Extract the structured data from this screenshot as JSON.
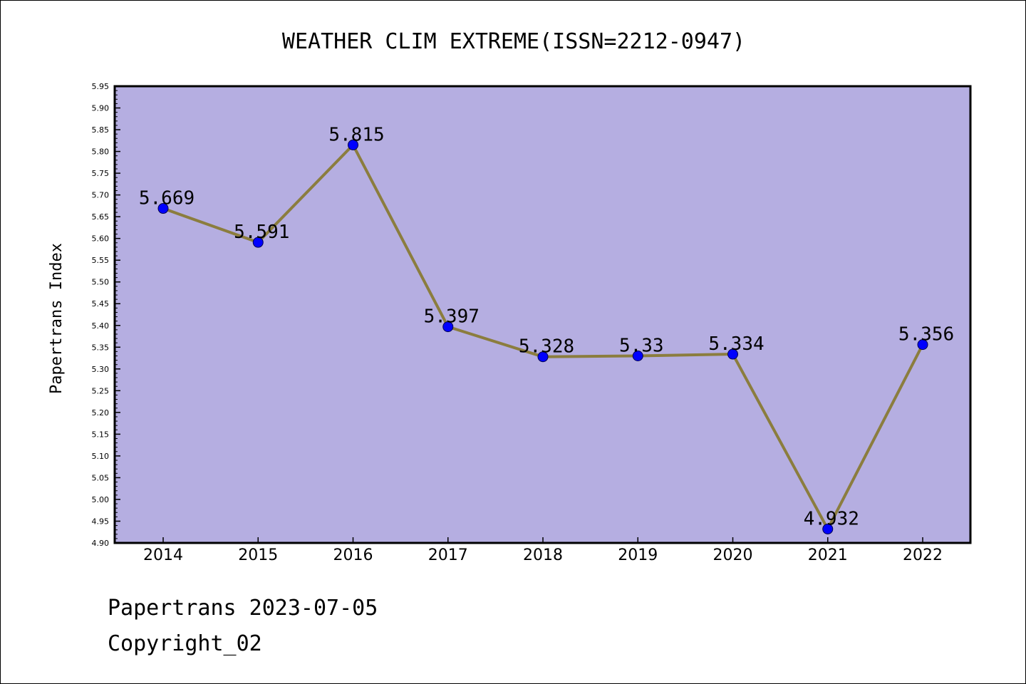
{
  "chart_data": {
    "type": "line",
    "title": "WEATHER CLIM EXTREME(ISSN=2212-0947)",
    "xlabel": "",
    "ylabel": "Papertrans Index",
    "categories": [
      "2014",
      "2015",
      "2016",
      "2017",
      "2018",
      "2019",
      "2020",
      "2021",
      "2022"
    ],
    "series": [
      {
        "values": [
          5.669,
          5.591,
          5.815,
          5.397,
          5.328,
          5.33,
          5.334,
          4.932,
          5.356
        ],
        "data_labels": [
          "5.669",
          "5.591",
          "5.815",
          "5.397",
          "5.328",
          "5.33",
          "5.334",
          "4.932",
          "5.356"
        ]
      }
    ],
    "ylim": [
      4.9,
      5.95
    ],
    "yticks": [
      "4.90",
      "4.95",
      "5.00",
      "5.05",
      "5.10",
      "5.15",
      "5.20",
      "5.25",
      "5.30",
      "5.35",
      "5.40",
      "5.45",
      "5.50",
      "5.55",
      "5.60",
      "5.65",
      "5.70",
      "5.75",
      "5.80",
      "5.85",
      "5.90",
      "5.95"
    ],
    "grid": false,
    "legend": "none",
    "colors": {
      "plot_background": "#b5aee1",
      "line": "#8b7d3e",
      "marker": "#0000ff"
    }
  },
  "footer": {
    "line1": "Papertrans 2023-07-05",
    "line2": "Copyright_02"
  }
}
